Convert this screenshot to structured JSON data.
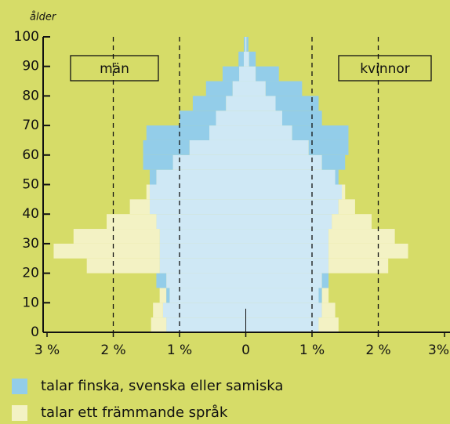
{
  "chart_data": {
    "type": "pyramid",
    "y_label": "ålder",
    "side_labels": [
      "män",
      "kvinnor"
    ],
    "age_groups": [
      0,
      5,
      10,
      15,
      20,
      25,
      30,
      35,
      40,
      45,
      50,
      55,
      60,
      65,
      70,
      75,
      80,
      85,
      90,
      95
    ],
    "age_width": 5,
    "series": [
      {
        "color": "#cfe8f5",
        "men": [
          1.2,
          1.25,
          1.15,
          1.2,
          1.3,
          1.3,
          1.3,
          1.35,
          1.45,
          1.45,
          1.35,
          1.1,
          0.85,
          0.55,
          0.45,
          0.3,
          0.2,
          0.1,
          0.03,
          0.01
        ],
        "women": [
          1.1,
          1.15,
          1.1,
          1.15,
          1.25,
          1.25,
          1.25,
          1.3,
          1.4,
          1.45,
          1.35,
          1.15,
          0.95,
          0.7,
          0.55,
          0.45,
          0.3,
          0.15,
          0.05,
          0.01
        ]
      },
      {
        "name": "talar finska, svenska eller samiska",
        "color": "#93cde9",
        "men": [
          0,
          0,
          0.05,
          0.15,
          0,
          0,
          0,
          0,
          0,
          0,
          0.1,
          0.45,
          0.7,
          0.95,
          0.55,
          0.5,
          0.4,
          0.25,
          0.08,
          0.02
        ],
        "women": [
          0,
          0,
          0.05,
          0.1,
          0,
          0,
          0,
          0,
          0,
          0,
          0.05,
          0.35,
          0.6,
          0.85,
          0.6,
          0.65,
          0.55,
          0.35,
          0.1,
          0.03
        ]
      },
      {
        "name": "talar ett främmande språk",
        "color": "#f3f2c4",
        "men": [
          0.23,
          0.15,
          0.1,
          0,
          1.1,
          1.6,
          1.3,
          0.75,
          0.3,
          0.05,
          0,
          0,
          0,
          0,
          0,
          0,
          0,
          0,
          0,
          0
        ],
        "women": [
          0.3,
          0.2,
          0.1,
          0,
          0.9,
          1.2,
          1.0,
          0.6,
          0.25,
          0.05,
          0,
          0,
          0,
          0,
          0,
          0,
          0,
          0,
          0,
          0
        ]
      }
    ],
    "xlim": [
      -3,
      3
    ],
    "xticks": [
      {
        "value": -3,
        "label": "3 %"
      },
      {
        "value": -2,
        "label": "2 %"
      },
      {
        "value": -1,
        "label": "1 %"
      },
      0,
      {
        "value": 1,
        "label": "1 %"
      },
      {
        "value": 2,
        "label": "2 %"
      },
      {
        "value": 3,
        "label": "3%"
      }
    ],
    "ylim": [
      0,
      100
    ],
    "yticks": [
      0,
      10,
      20,
      30,
      40,
      50,
      60,
      70,
      80,
      90,
      100
    ],
    "grid_x": [
      -2,
      -1,
      1,
      2
    ]
  }
}
